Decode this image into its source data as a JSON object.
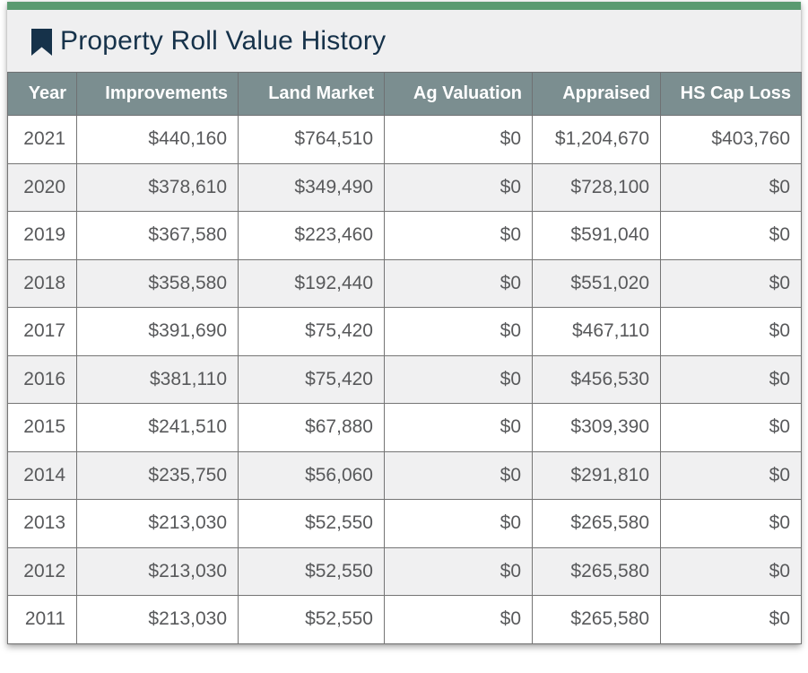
{
  "panel": {
    "title": "Property Roll Value History",
    "icon": "bookmark-icon"
  },
  "colors": {
    "accent_bar": "#5a9a70",
    "panel_header_bg": "#efeff0",
    "title_color": "#16324a",
    "table_header_bg": "#7b8e90",
    "table_header_text": "#ffffff",
    "row_alt_bg": "#f0f0f1",
    "cell_text": "#58595b",
    "border": "#757575"
  },
  "table": {
    "columns": [
      "Year",
      "Improvements",
      "Land Market",
      "Ag Valuation",
      "Appraised",
      "HS Cap Loss"
    ],
    "rows": [
      [
        "2021",
        "$440,160",
        "$764,510",
        "$0",
        "$1,204,670",
        "$403,760"
      ],
      [
        "2020",
        "$378,610",
        "$349,490",
        "$0",
        "$728,100",
        "$0"
      ],
      [
        "2019",
        "$367,580",
        "$223,460",
        "$0",
        "$591,040",
        "$0"
      ],
      [
        "2018",
        "$358,580",
        "$192,440",
        "$0",
        "$551,020",
        "$0"
      ],
      [
        "2017",
        "$391,690",
        "$75,420",
        "$0",
        "$467,110",
        "$0"
      ],
      [
        "2016",
        "$381,110",
        "$75,420",
        "$0",
        "$456,530",
        "$0"
      ],
      [
        "2015",
        "$241,510",
        "$67,880",
        "$0",
        "$309,390",
        "$0"
      ],
      [
        "2014",
        "$235,750",
        "$56,060",
        "$0",
        "$291,810",
        "$0"
      ],
      [
        "2013",
        "$213,030",
        "$52,550",
        "$0",
        "$265,580",
        "$0"
      ],
      [
        "2012",
        "$213,030",
        "$52,550",
        "$0",
        "$265,580",
        "$0"
      ],
      [
        "2011",
        "$213,030",
        "$52,550",
        "$0",
        "$265,580",
        "$0"
      ]
    ],
    "cell_names": [
      "cell-year",
      "cell-improvements",
      "cell-land-market",
      "cell-ag-valuation",
      "cell-appraised",
      "cell-hs-cap-loss"
    ]
  }
}
